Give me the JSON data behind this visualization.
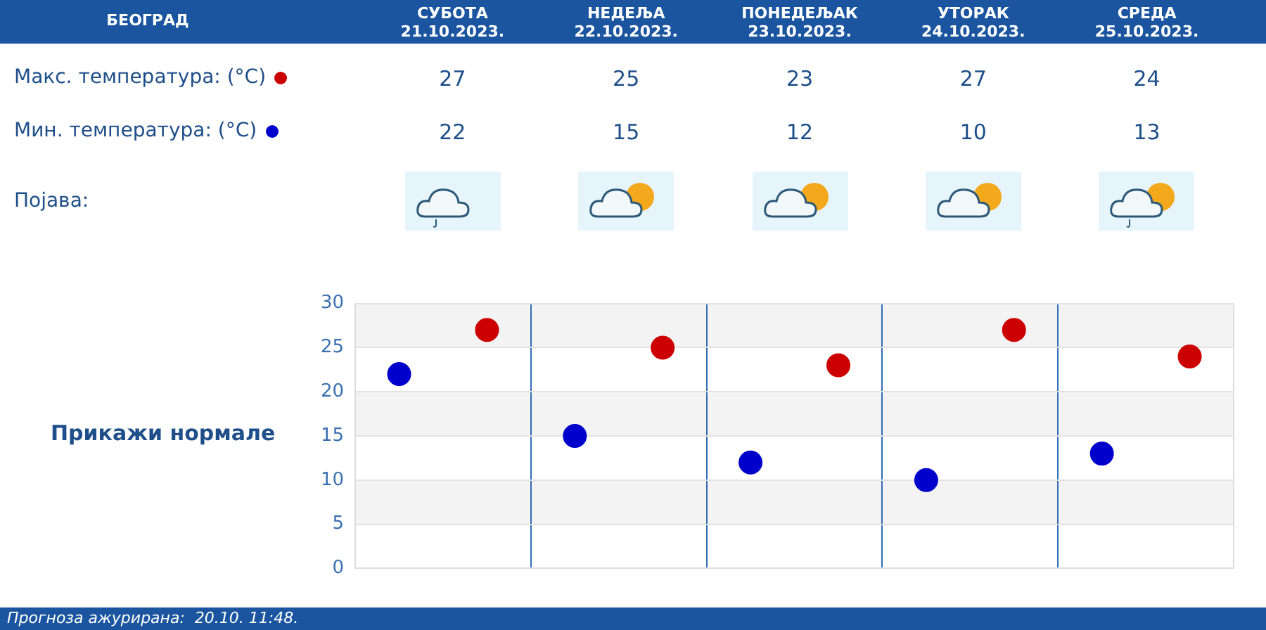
{
  "chart_data": {
    "type": "scatter",
    "title": "БЕОГРАД",
    "categories": [
      null,
      null,
      null,
      null,
      null
    ],
    "series": [
      {
        "name": "Макс. температура: (°C)",
        "color": "#cc0000",
        "values": [
          27,
          25,
          23,
          27,
          24
        ]
      },
      {
        "name": "Мин. температура: (°C)",
        "color": "#0000cc",
        "values": [
          22,
          15,
          12,
          10,
          13
        ]
      }
    ],
    "ylim": [
      0,
      30
    ],
    "yticks": [
      0,
      5,
      10,
      15,
      20,
      25,
      30
    ],
    "grid": true,
    "legend": "top left",
    "marker": "circle",
    "data_labels": true,
    "tick_labels": "y",
    "annotations": [
      "СУБОТА 21.10.2023.",
      "НЕДЕЉА 22.10.2023.",
      "ПОНЕДЕЉАК 23.10.2023.",
      "УТОРАК 24.10.2023.",
      "СРЕДА 25.10.2023.",
      "Појава:",
      "Прикажи нормале",
      "Прогноза ажурирана:  20.10. 11:48."
    ]
  }
}
